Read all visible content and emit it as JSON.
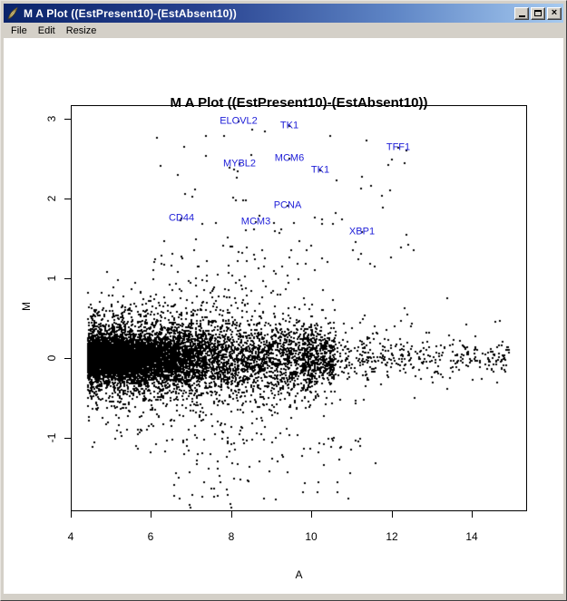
{
  "window": {
    "title": "M A Plot ((EstPresent10)-(EstAbsent10))",
    "icon": "feather-icon",
    "controls": {
      "minimize": "",
      "maximize": "",
      "close": "×"
    }
  },
  "menu": {
    "items": [
      {
        "label": "File"
      },
      {
        "label": "Edit"
      },
      {
        "label": "Resize"
      }
    ]
  },
  "colors": {
    "titlebar_left": "#0a246a",
    "titlebar_right": "#a6caf0",
    "chrome": "#d4d0c8",
    "plot_bg": "#ffffff",
    "point": "#000000",
    "gene_label": "#1d1dd8"
  },
  "chart_data": {
    "type": "scatter",
    "title": "M A Plot ((EstPresent10)-(EstAbsent10))",
    "xlabel": "A",
    "ylabel": "M",
    "x_ticks": [
      4,
      6,
      8,
      10,
      12,
      14
    ],
    "y_ticks": [
      3,
      2,
      1,
      0,
      -1
    ],
    "xlim": [
      4.0,
      15.38
    ],
    "ylim": [
      -1.92,
      3.17
    ],
    "grid": false,
    "legend": false,
    "point_shape": "2px-square",
    "labeled_points": [
      {
        "label": "ELOVL2",
        "A": 8.19,
        "M": 2.97
      },
      {
        "label": "TK1",
        "A": 9.45,
        "M": 2.91
      },
      {
        "label": "TFF1",
        "A": 12.17,
        "M": 2.64
      },
      {
        "label": "MCM6",
        "A": 9.45,
        "M": 2.5
      },
      {
        "label": "MYBL2",
        "A": 8.21,
        "M": 2.43
      },
      {
        "label": "TK1",
        "A": 10.22,
        "M": 2.35
      },
      {
        "label": "PCNA",
        "A": 9.41,
        "M": 1.91
      },
      {
        "label": "CD44",
        "A": 6.76,
        "M": 1.75
      },
      {
        "label": "MCM3",
        "A": 8.62,
        "M": 1.7
      },
      {
        "label": "XBP1",
        "A": 11.26,
        "M": 1.58
      }
    ],
    "cloud_model": {
      "description": "dense MA-plot point cloud centered on M=0, ~11000 probesets, A from 4.42 to 14.93",
      "n": 11000,
      "seed": 20061021,
      "a_components": [
        {
          "w": 0.715,
          "type": "exp",
          "base": 4.42,
          "scale": 1.15,
          "max": 10.2
        },
        {
          "w": 0.235,
          "type": "uniform",
          "min": 5.0,
          "max": 10.6
        },
        {
          "w": 0.05,
          "type": "pow",
          "base": 9.8,
          "scale": 5.13,
          "exp": 1.5
        }
      ],
      "m_sd_base": 0.16,
      "m_sd_peak": 0.3,
      "m_peak_a": 8.4,
      "m_peak_width": 7,
      "m_mixture": [
        {
          "w": 0.74,
          "k": 0.5
        },
        {
          "w": 0.22,
          "k": 1.1
        },
        {
          "w": 0.04,
          "k": 2.1
        }
      ],
      "skew_pos": 1.08,
      "clamp_m": [
        -1.88,
        3.05
      ],
      "outliers_top": {
        "n": 80,
        "a_min": 6.0,
        "a_max": 12.6,
        "m_min": 1.15,
        "m_max": 2.9,
        "falloff": 1.7
      },
      "outliers_bottom": {
        "n": 70,
        "a_min": 6.3,
        "a_max": 11.6,
        "m_min": -1.78,
        "m_max": -1.0,
        "falloff": 1.7
      }
    }
  }
}
